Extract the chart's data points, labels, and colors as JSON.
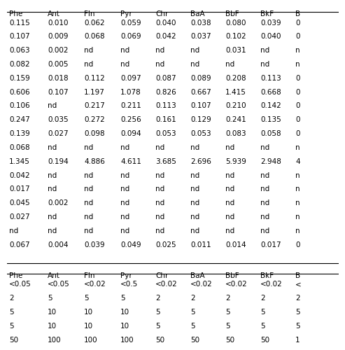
{
  "header1": [
    "Phe",
    "Ant",
    "Fln",
    "Pyr",
    "Chr",
    "BaA",
    "BbF",
    "BkF",
    "B"
  ],
  "rows1": [
    [
      "0.115",
      "0.010",
      "0.062",
      "0.059",
      "0.040",
      "0.038",
      "0.080",
      "0.039",
      "0"
    ],
    [
      "0.107",
      "0.009",
      "0.068",
      "0.069",
      "0.042",
      "0.037",
      "0.102",
      "0.040",
      "0"
    ],
    [
      "0.063",
      "0.002",
      "nd",
      "nd",
      "nd",
      "nd",
      "0.031",
      "nd",
      "n"
    ],
    [
      "0.082",
      "0.005",
      "nd",
      "nd",
      "nd",
      "nd",
      "nd",
      "nd",
      "n"
    ],
    [
      "0.159",
      "0.018",
      "0.112",
      "0.097",
      "0.087",
      "0.089",
      "0.208",
      "0.113",
      "0"
    ],
    [
      "0.606",
      "0.107",
      "1.197",
      "1.078",
      "0.826",
      "0.667",
      "1.415",
      "0.668",
      "0"
    ],
    [
      "0.106",
      "nd",
      "0.217",
      "0.211",
      "0.113",
      "0.107",
      "0.210",
      "0.142",
      "0"
    ],
    [
      "0.247",
      "0.035",
      "0.272",
      "0.256",
      "0.161",
      "0.129",
      "0.241",
      "0.135",
      "0"
    ],
    [
      "0.139",
      "0.027",
      "0.098",
      "0.094",
      "0.053",
      "0.053",
      "0.083",
      "0.058",
      "0"
    ],
    [
      "0.068",
      "nd",
      "nd",
      "nd",
      "nd",
      "nd",
      "nd",
      "nd",
      "n"
    ],
    [
      "1.345",
      "0.194",
      "4.886",
      "4.611",
      "3.685",
      "2.696",
      "5.939",
      "2.948",
      "4"
    ],
    [
      "0.042",
      "nd",
      "nd",
      "nd",
      "nd",
      "nd",
      "nd",
      "nd",
      "n"
    ],
    [
      "0.017",
      "nd",
      "nd",
      "nd",
      "nd",
      "nd",
      "nd",
      "nd",
      "n"
    ],
    [
      "0.045",
      "0.002",
      "nd",
      "nd",
      "nd",
      "nd",
      "nd",
      "nd",
      "n"
    ],
    [
      "0.027",
      "nd",
      "nd",
      "nd",
      "nd",
      "nd",
      "nd",
      "nd",
      "n"
    ],
    [
      "nd",
      "nd",
      "nd",
      "nd",
      "nd",
      "nd",
      "nd",
      "nd",
      "n"
    ],
    [
      "0.067",
      "0.004",
      "0.039",
      "0.049",
      "0.025",
      "0.011",
      "0.014",
      "0.017",
      "0"
    ]
  ],
  "header2": [
    "Phe",
    "Ant",
    "Fln",
    "Pyr",
    "Chr",
    "BaA",
    "BbF",
    "BkF",
    "B"
  ],
  "rows2": [
    [
      "<0.05",
      "<0.05",
      "<0.02",
      "<0.5",
      "<0.02",
      "<0.02",
      "<0.02",
      "<0.02",
      "<"
    ],
    [
      "2",
      "5",
      "5",
      "5",
      "2",
      "2",
      "2",
      "2",
      "2"
    ],
    [
      "5",
      "10",
      "10",
      "10",
      "5",
      "5",
      "5",
      "5",
      "5"
    ],
    [
      "5",
      "10",
      "10",
      "10",
      "5",
      "5",
      "5",
      "5",
      "5"
    ],
    [
      "50",
      "100",
      "100",
      "100",
      "50",
      "50",
      "50",
      "50",
      "1"
    ]
  ],
  "bg_color": "#ffffff",
  "text_color": "#000000",
  "header_color": "#000000",
  "line_color": "#000000",
  "font_size": 7.5
}
